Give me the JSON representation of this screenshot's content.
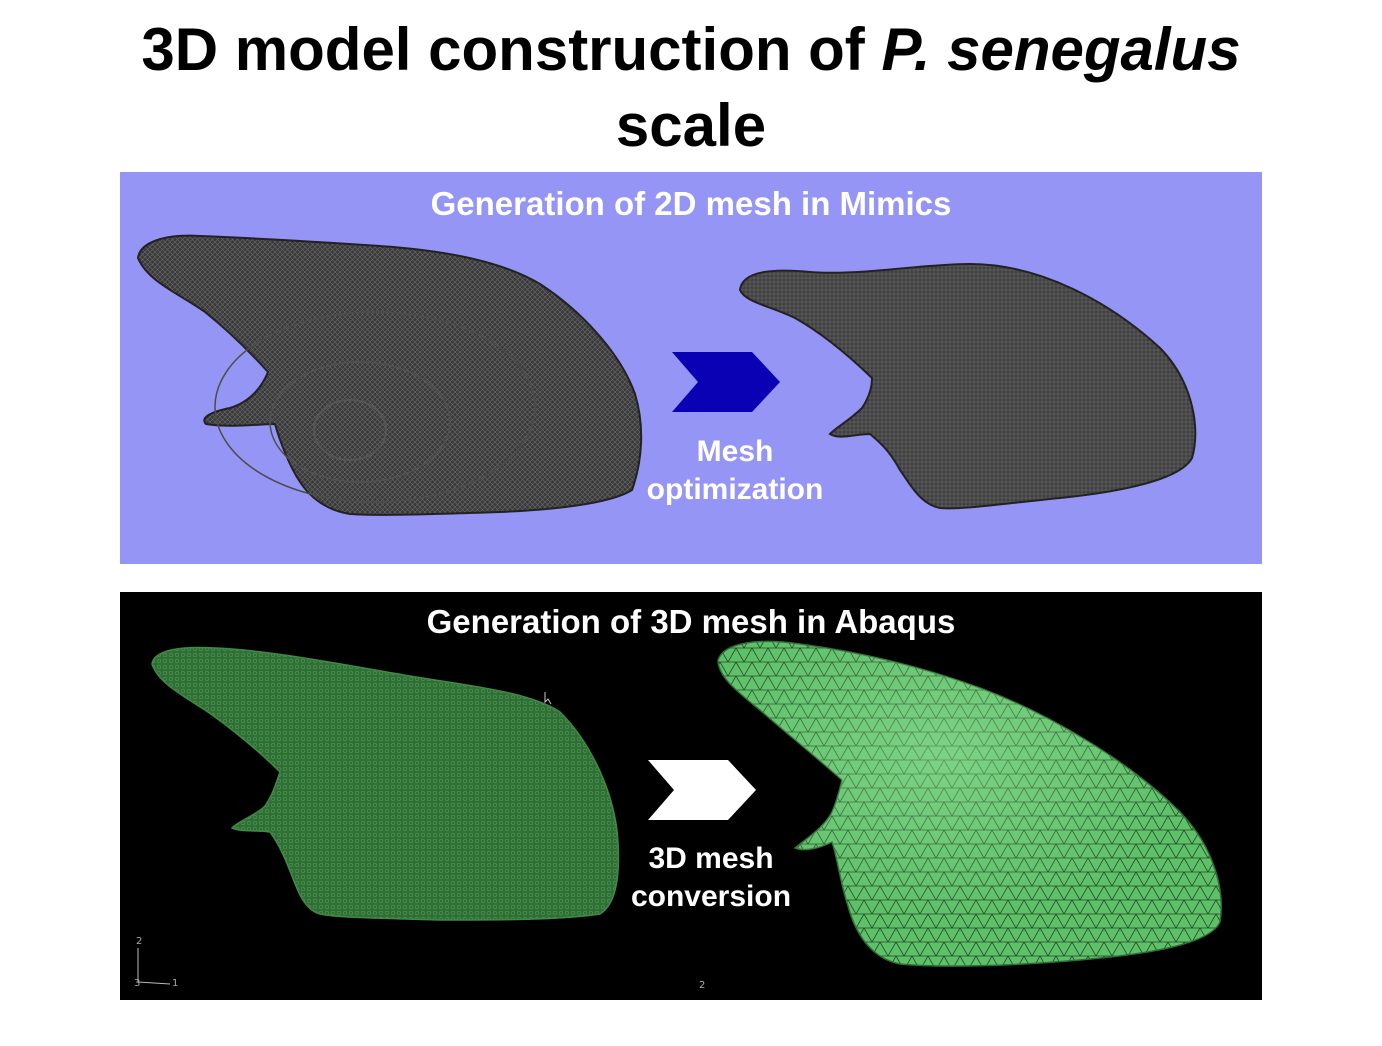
{
  "title": {
    "line1_prefix": "3D model construction of ",
    "species": "P. senegalus",
    "line2": "scale"
  },
  "panels": {
    "top": {
      "heading": "Generation of 2D mesh in Mimics",
      "caption_line1": "Mesh",
      "caption_line2": "optimization",
      "background": "#9595f5",
      "arrow_color": "#0a00b4"
    },
    "bottom": {
      "heading": "Generation of 3D mesh in Abaqus",
      "caption_line1": "3D mesh",
      "caption_line2": "conversion",
      "background": "#000000",
      "arrow_color": "#ffffff",
      "axis_labels": [
        "2",
        "1",
        "3",
        "2"
      ]
    }
  }
}
